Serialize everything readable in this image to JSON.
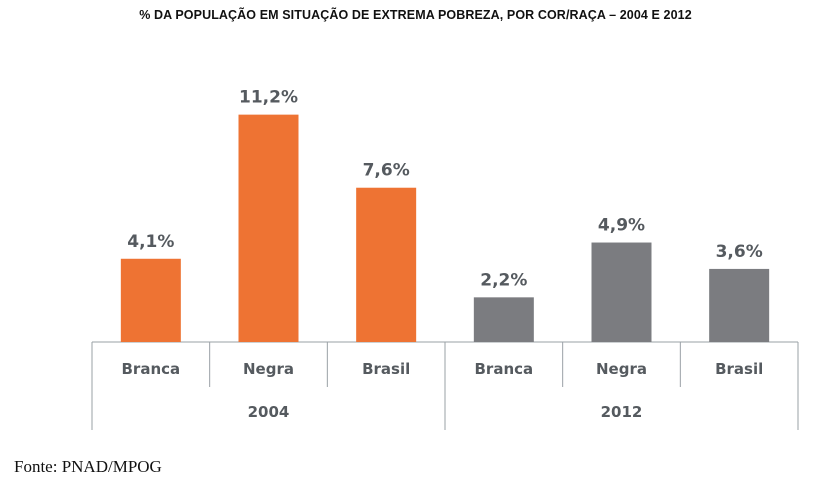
{
  "title": "% DA POPULAÇÃO EM SITUAÇÃO DE EXTREMA POBREZA, POR COR/RAÇA – 2004 E 2012",
  "source": "Fonte: PNAD/MPOG",
  "colors": {
    "series_2004": "#ee7333",
    "series_2012": "#7b7c80",
    "label": "#555a5f",
    "axis": "#9aa0a6"
  },
  "chart_data": {
    "type": "bar",
    "title": "% DA POPULAÇÃO EM SITUAÇÃO DE EXTREMA POBREZA, POR COR/RAÇA – 2004 E 2012",
    "xlabel": "",
    "ylabel": "",
    "grid": false,
    "legend": "none",
    "groups": [
      {
        "name": "2004",
        "color": "#ee7333",
        "bars": [
          {
            "category": "Branca",
            "value": 4.1,
            "label": "4,1%"
          },
          {
            "category": "Negra",
            "value": 11.2,
            "label": "11,2%"
          },
          {
            "category": "Brasil",
            "value": 7.6,
            "label": "7,6%"
          }
        ]
      },
      {
        "name": "2012",
        "color": "#7b7c80",
        "bars": [
          {
            "category": "Branca",
            "value": 2.2,
            "label": "2,2%"
          },
          {
            "category": "Negra",
            "value": 4.9,
            "label": "4,9%"
          },
          {
            "category": "Brasil",
            "value": 3.6,
            "label": "3,6%"
          }
        ]
      }
    ]
  }
}
